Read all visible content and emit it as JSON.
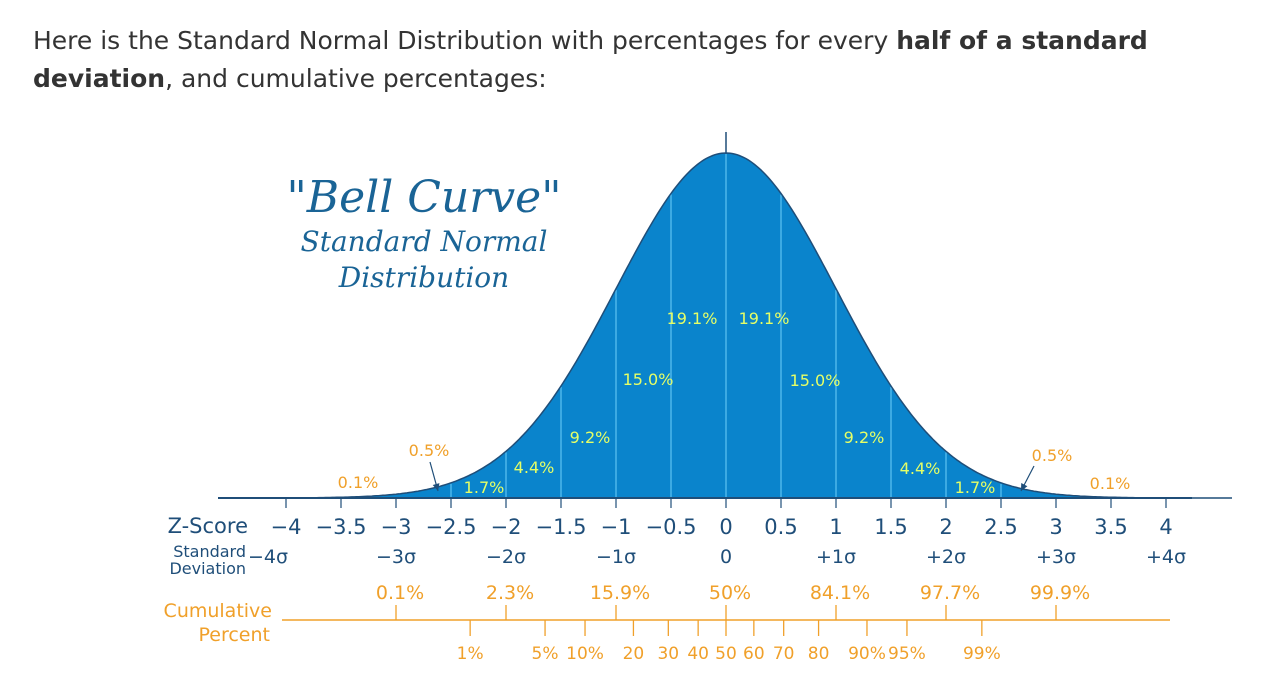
{
  "intro": {
    "pre": "Here is the Standard Normal Distribution with percentages for every ",
    "bold1": "half of a standard deviation",
    "post": ", and cumulative percentages:"
  },
  "chart_data": {
    "type": "area",
    "title": "\"Bell Curve\"",
    "subtitle_line1": "Standard Normal",
    "subtitle_line2": "Distribution",
    "colors": {
      "fill": "#0a84cc",
      "divider": "#5ec3f2",
      "band_label": "#e6ff66",
      "tail_label": "#f0a02a",
      "axis_text": "#1f4e79",
      "cumulative": "#f0a02a",
      "axis": "#1f4e79"
    },
    "bands": [
      {
        "from": -4,
        "to": -3,
        "label": "0.1%"
      },
      {
        "from": -3,
        "to": -2.5,
        "label": "0.5%"
      },
      {
        "from": -2.5,
        "to": -2,
        "label": "1.7%"
      },
      {
        "from": -2,
        "to": -1.5,
        "label": "4.4%"
      },
      {
        "from": -1.5,
        "to": -1,
        "label": "9.2%"
      },
      {
        "from": -1,
        "to": -0.5,
        "label": "15.0%"
      },
      {
        "from": -0.5,
        "to": 0,
        "label": "19.1%"
      },
      {
        "from": 0,
        "to": 0.5,
        "label": "19.1%"
      },
      {
        "from": 0.5,
        "to": 1,
        "label": "15.0%"
      },
      {
        "from": 1,
        "to": 1.5,
        "label": "9.2%"
      },
      {
        "from": 1.5,
        "to": 2,
        "label": "4.4%"
      },
      {
        "from": 2,
        "to": 2.5,
        "label": "1.7%"
      },
      {
        "from": 2.5,
        "to": 3,
        "label": "0.5%"
      },
      {
        "from": 3,
        "to": 4,
        "label": "0.1%"
      }
    ],
    "z_label": "Z-Score",
    "z_ticks": [
      {
        "v": -4,
        "label": "−4"
      },
      {
        "v": -3.5,
        "label": "−3.5"
      },
      {
        "v": -3,
        "label": "−3"
      },
      {
        "v": -2.5,
        "label": "−2.5"
      },
      {
        "v": -2,
        "label": "−2"
      },
      {
        "v": -1.5,
        "label": "−1.5"
      },
      {
        "v": -1,
        "label": "−1"
      },
      {
        "v": -0.5,
        "label": "−0.5"
      },
      {
        "v": 0,
        "label": "0"
      },
      {
        "v": 0.5,
        "label": "0.5"
      },
      {
        "v": 1,
        "label": "1"
      },
      {
        "v": 1.5,
        "label": "1.5"
      },
      {
        "v": 2,
        "label": "2"
      },
      {
        "v": 2.5,
        "label": "2.5"
      },
      {
        "v": 3,
        "label": "3"
      },
      {
        "v": 3.5,
        "label": "3.5"
      },
      {
        "v": 4,
        "label": "4"
      }
    ],
    "sd_label_line1": "Standard",
    "sd_label_line2": "Deviation",
    "sd_ticks": [
      {
        "v": -4,
        "label": "−4σ"
      },
      {
        "v": -3,
        "label": "−3σ"
      },
      {
        "v": -2,
        "label": "−2σ"
      },
      {
        "v": -1,
        "label": "−1σ"
      },
      {
        "v": 0,
        "label": "0"
      },
      {
        "v": 1,
        "label": "+1σ"
      },
      {
        "v": 2,
        "label": "+2σ"
      },
      {
        "v": 3,
        "label": "+3σ"
      },
      {
        "v": 4,
        "label": "+4σ"
      }
    ],
    "cum_label_line1": "Cumulative",
    "cum_label_line2": "Percent",
    "cum_upper": [
      {
        "z": -3,
        "label": "0.1%"
      },
      {
        "z": -2,
        "label": "2.3%"
      },
      {
        "z": -1,
        "label": "15.9%"
      },
      {
        "z": 0,
        "label": "50%"
      },
      {
        "z": 1,
        "label": "84.1%"
      },
      {
        "z": 2,
        "label": "97.7%"
      },
      {
        "z": 3,
        "label": "99.9%"
      }
    ],
    "cum_lower": [
      {
        "z": -2.326,
        "label": "1%"
      },
      {
        "z": -1.645,
        "label": "5%"
      },
      {
        "z": -1.2816,
        "label": "10%"
      },
      {
        "z": -0.8416,
        "label": "20"
      },
      {
        "z": -0.5244,
        "label": "30"
      },
      {
        "z": -0.2533,
        "label": "40"
      },
      {
        "z": 0,
        "label": "50"
      },
      {
        "z": 0.2533,
        "label": "60"
      },
      {
        "z": 0.5244,
        "label": "70"
      },
      {
        "z": 0.8416,
        "label": "80"
      },
      {
        "z": 1.2816,
        "label": "90%"
      },
      {
        "z": 1.645,
        "label": "95%"
      },
      {
        "z": 2.326,
        "label": "99%"
      }
    ]
  }
}
